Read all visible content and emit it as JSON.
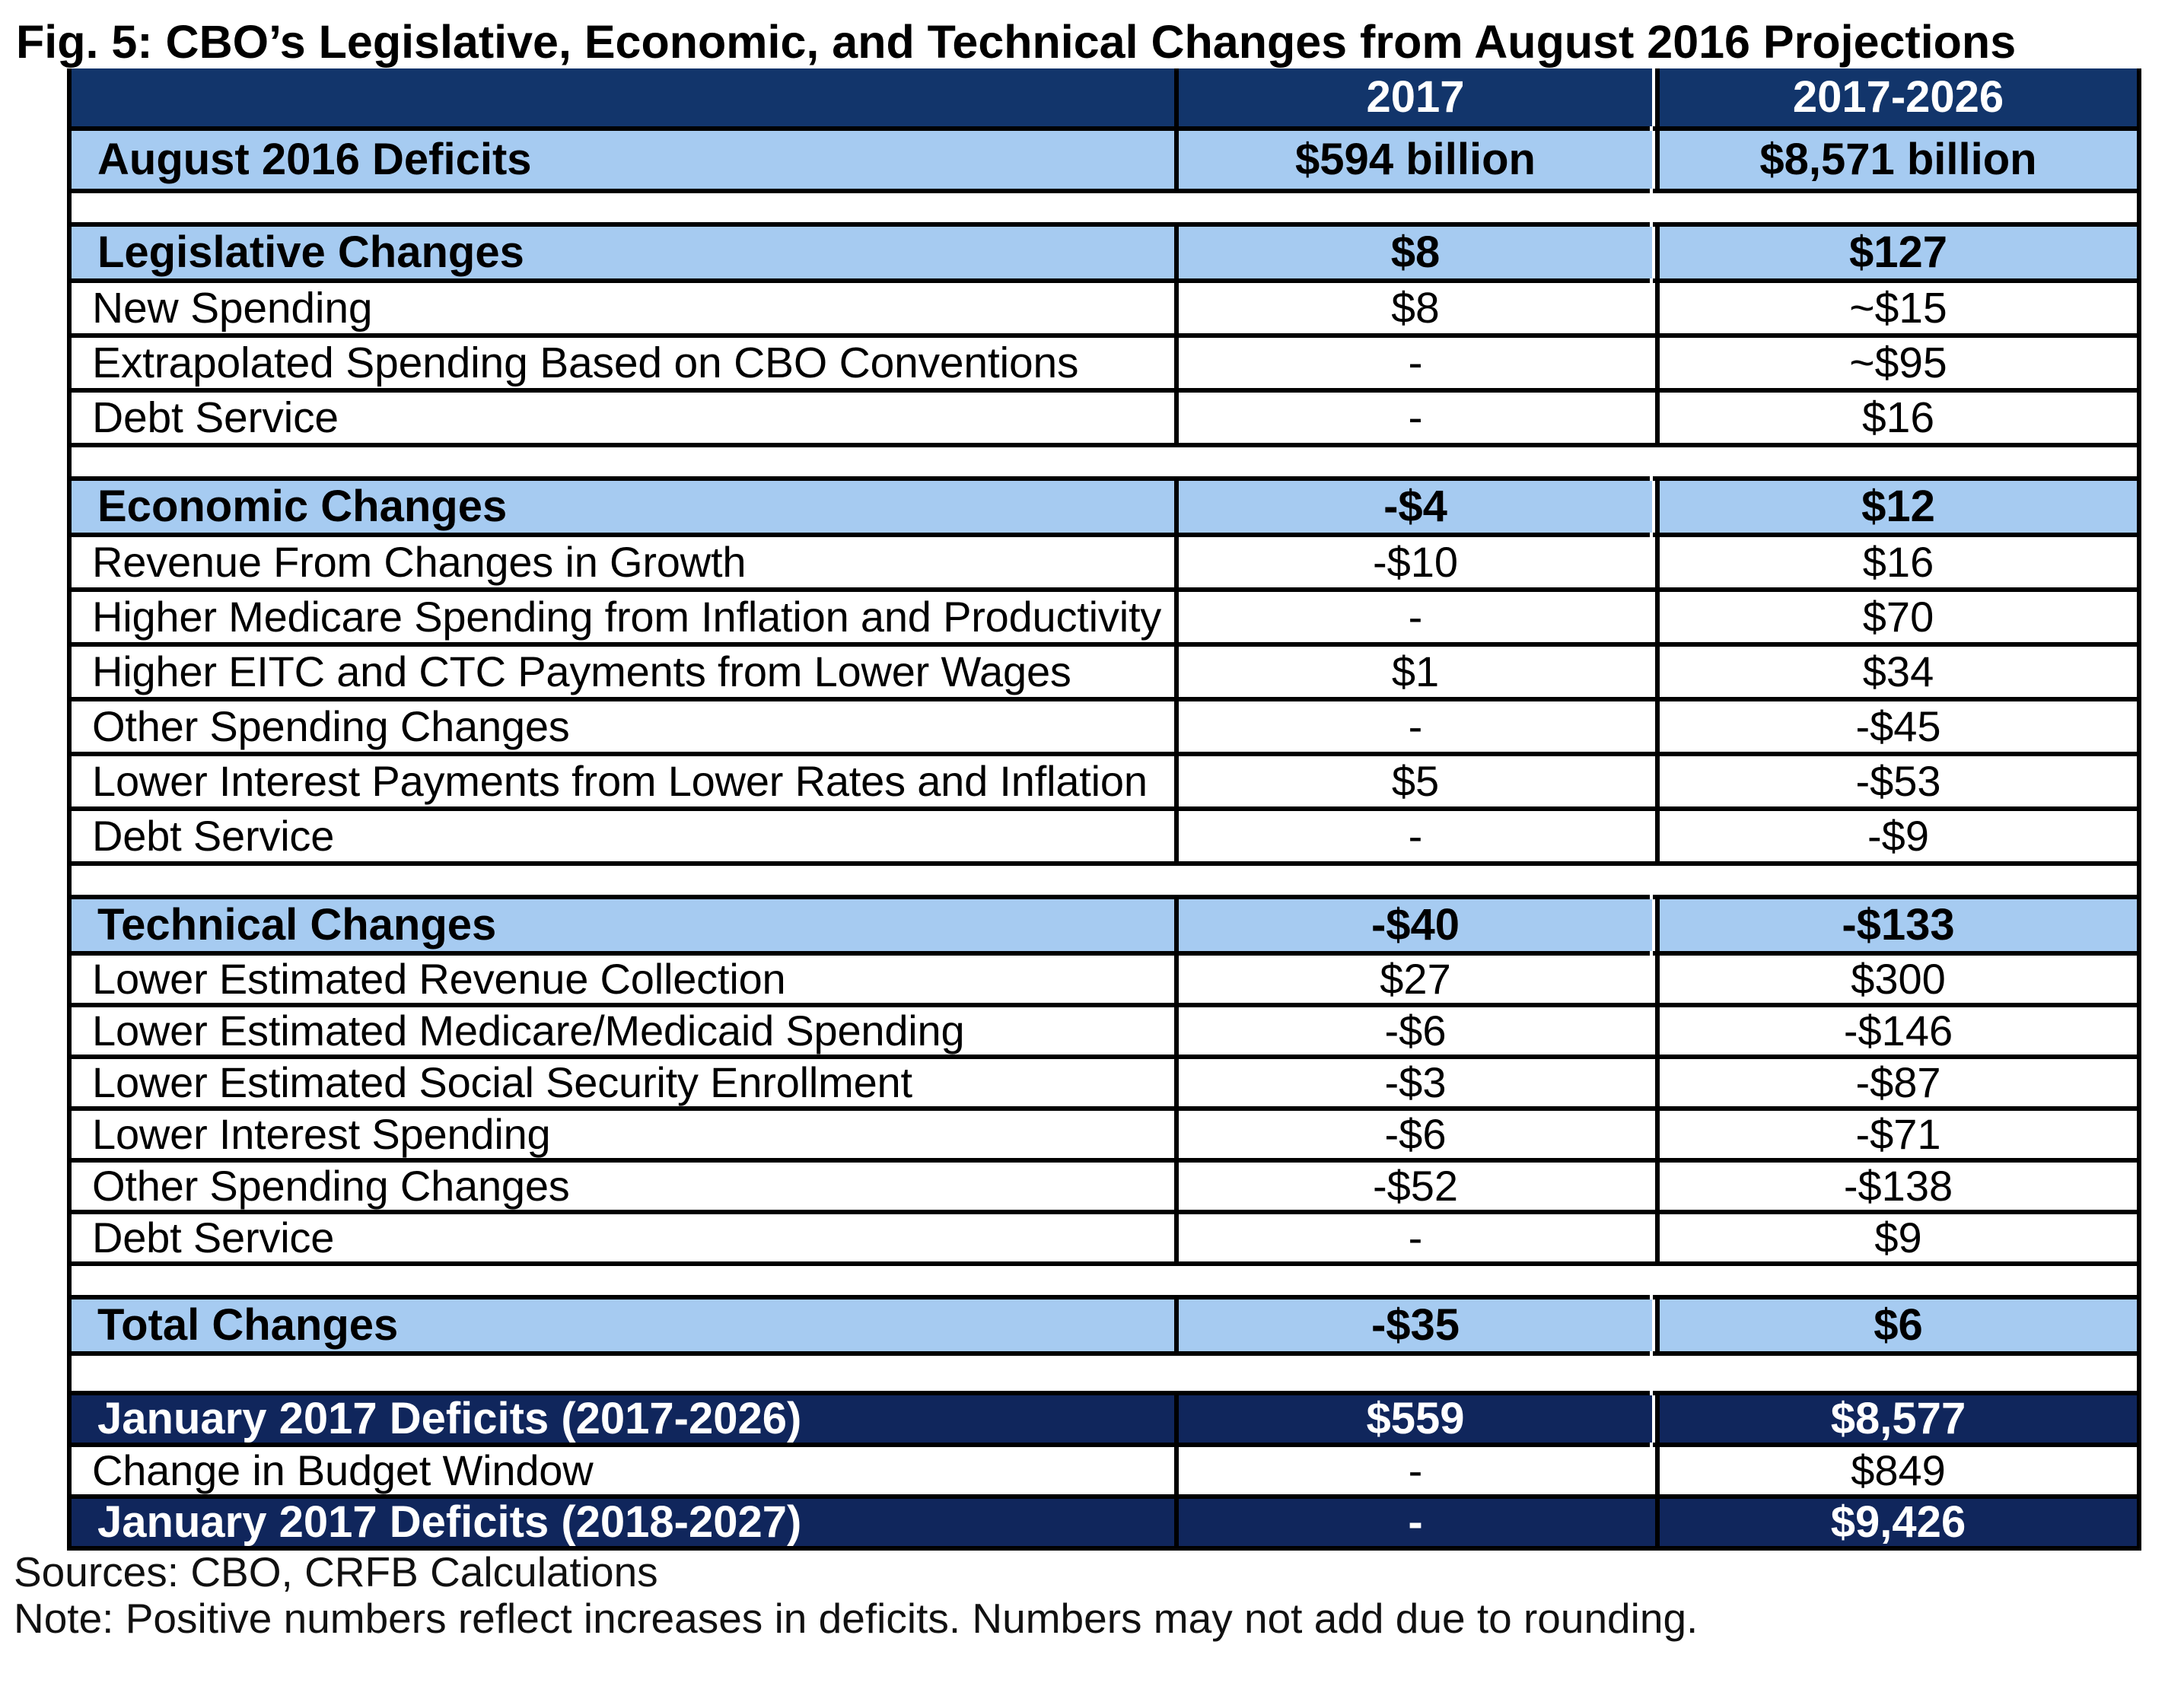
{
  "title": "Fig. 5: CBO’s Legislative, Economic, and Technical Changes from August 2016 Projections",
  "colors": {
    "header_navy": "#12356B",
    "bottom_navy": "#10265C",
    "light_blue": "#A6CBF1",
    "grid_black": "#000000",
    "text_black": "#000000",
    "text_white": "#ffffff"
  },
  "table": {
    "columns": [
      "",
      "2017",
      "2017-2026"
    ],
    "rows": [
      {
        "kind": "column-header",
        "label": "",
        "v2017": "2017",
        "v2026": "2017-2026"
      },
      {
        "kind": "august-deficits",
        "label": "August 2016 Deficits",
        "v2017": "$594 billion",
        "v2026": "$8,571 billion"
      },
      {
        "kind": "spacer",
        "label": "",
        "v2017": "",
        "v2026": ""
      },
      {
        "kind": "section-header",
        "label": "Legislative Changes",
        "v2017": "$8",
        "v2026": "$127"
      },
      {
        "kind": "line-item",
        "label": "New Spending",
        "v2017": "$8",
        "v2026": "~$15"
      },
      {
        "kind": "line-item",
        "label": "Extrapolated Spending Based on CBO Conventions",
        "v2017": "-",
        "v2026": "~$95"
      },
      {
        "kind": "line-item",
        "label": "Debt Service",
        "v2017": "-",
        "v2026": "$16"
      },
      {
        "kind": "spacer",
        "label": "",
        "v2017": "",
        "v2026": ""
      },
      {
        "kind": "section-header",
        "label": "Economic Changes",
        "v2017": "-$4",
        "v2026": "$12"
      },
      {
        "kind": "line-item",
        "label": "Revenue From Changes in Growth",
        "v2017": "-$10",
        "v2026": "$16"
      },
      {
        "kind": "line-item",
        "label": "Higher Medicare Spending from Inflation and Productivity",
        "v2017": "-",
        "v2026": "$70"
      },
      {
        "kind": "line-item",
        "label": "Higher EITC and CTC Payments from Lower Wages",
        "v2017": "$1",
        "v2026": "$34"
      },
      {
        "kind": "line-item",
        "label": "Other Spending Changes",
        "v2017": "-",
        "v2026": "-$45"
      },
      {
        "kind": "line-item",
        "label": "Lower Interest Payments from Lower Rates and Inflation",
        "v2017": "$5",
        "v2026": "-$53"
      },
      {
        "kind": "line-item",
        "label": "Debt Service",
        "v2017": "-",
        "v2026": "-$9"
      },
      {
        "kind": "spacer",
        "label": "",
        "v2017": "",
        "v2026": ""
      },
      {
        "kind": "section-header",
        "label": "Technical Changes",
        "v2017": "-$40",
        "v2026": "-$133"
      },
      {
        "kind": "line-item",
        "label": "Lower Estimated Revenue Collection",
        "v2017": "$27",
        "v2026": "$300"
      },
      {
        "kind": "line-item",
        "label": "Lower Estimated Medicare/Medicaid Spending",
        "v2017": "-$6",
        "v2026": "-$146"
      },
      {
        "kind": "line-item",
        "label": "Lower Estimated Social Security Enrollment",
        "v2017": "-$3",
        "v2026": "-$87"
      },
      {
        "kind": "line-item",
        "label": "Lower Interest Spending",
        "v2017": "-$6",
        "v2026": "-$71"
      },
      {
        "kind": "line-item",
        "label": "Other Spending Changes",
        "v2017": "-$52",
        "v2026": "-$138"
      },
      {
        "kind": "line-item",
        "label": "Debt Service",
        "v2017": "-",
        "v2026": "$9"
      },
      {
        "kind": "spacer",
        "label": "",
        "v2017": "",
        "v2026": ""
      },
      {
        "kind": "section-header",
        "label": "Total Changes",
        "v2017": "-$35",
        "v2026": "$6"
      },
      {
        "kind": "spacer",
        "label": "",
        "v2017": "",
        "v2026": ""
      },
      {
        "kind": "navy-total",
        "label": "January 2017 Deficits (2017-2026)",
        "v2017": "$559",
        "v2026": "$8,577"
      },
      {
        "kind": "line-item",
        "label": "Change in Budget Window",
        "v2017": "-",
        "v2026": "$849"
      },
      {
        "kind": "navy-total",
        "label": "January 2017 Deficits (2018-2027)",
        "v2017": "-",
        "v2026": "$9,426"
      }
    ]
  },
  "footnotes": {
    "sources": "Sources: CBO, CRFB Calculations",
    "note": "Note: Positive numbers reflect increases in deficits. Numbers may not add due to rounding."
  },
  "chart_data": {
    "type": "table",
    "title": "Fig. 5: CBO’s Legislative, Economic, and Technical Changes from August 2016 Projections",
    "columns": [
      "2017",
      "2017-2026"
    ],
    "august_2016_deficits": {
      "2017": "$594 billion",
      "2017-2026": "$8,571 billion"
    },
    "sections": [
      {
        "name": "Legislative Changes",
        "totals": {
          "2017": "$8",
          "2017-2026": "$127"
        },
        "items": [
          {
            "label": "New Spending",
            "2017": "$8",
            "2017-2026": "~$15"
          },
          {
            "label": "Extrapolated Spending Based on CBO Conventions",
            "2017": "-",
            "2017-2026": "~$95"
          },
          {
            "label": "Debt Service",
            "2017": "-",
            "2017-2026": "$16"
          }
        ]
      },
      {
        "name": "Economic Changes",
        "totals": {
          "2017": "-$4",
          "2017-2026": "$12"
        },
        "items": [
          {
            "label": "Revenue From Changes in Growth",
            "2017": "-$10",
            "2017-2026": "$16"
          },
          {
            "label": "Higher Medicare Spending from Inflation and Productivity",
            "2017": "-",
            "2017-2026": "$70"
          },
          {
            "label": "Higher EITC and CTC Payments from Lower Wages",
            "2017": "$1",
            "2017-2026": "$34"
          },
          {
            "label": "Other Spending Changes",
            "2017": "-",
            "2017-2026": "-$45"
          },
          {
            "label": "Lower Interest Payments from Lower Rates and Inflation",
            "2017": "$5",
            "2017-2026": "-$53"
          },
          {
            "label": "Debt Service",
            "2017": "-",
            "2017-2026": "-$9"
          }
        ]
      },
      {
        "name": "Technical Changes",
        "totals": {
          "2017": "-$40",
          "2017-2026": "-$133"
        },
        "items": [
          {
            "label": "Lower Estimated Revenue Collection",
            "2017": "$27",
            "2017-2026": "$300"
          },
          {
            "label": "Lower Estimated Medicare/Medicaid Spending",
            "2017": "-$6",
            "2017-2026": "-$146"
          },
          {
            "label": "Lower Estimated Social Security Enrollment",
            "2017": "-$3",
            "2017-2026": "-$87"
          },
          {
            "label": "Lower Interest Spending",
            "2017": "-$6",
            "2017-2026": "-$71"
          },
          {
            "label": "Other Spending Changes",
            "2017": "-$52",
            "2017-2026": "-$138"
          },
          {
            "label": "Debt Service",
            "2017": "-",
            "2017-2026": "$9"
          }
        ]
      }
    ],
    "total_changes": {
      "2017": "-$35",
      "2017-2026": "$6"
    },
    "january_2017_deficits_2017_2026": {
      "2017": "$559",
      "2017-2026": "$8,577"
    },
    "change_in_budget_window": {
      "2017": "-",
      "2017-2026": "$849"
    },
    "january_2017_deficits_2018_2027": {
      "2017": "-",
      "2017-2026": "$9,426"
    },
    "notes": [
      "Sources: CBO, CRFB Calculations",
      "Note: Positive numbers reflect increases in deficits. Numbers may not add due to rounding."
    ]
  }
}
